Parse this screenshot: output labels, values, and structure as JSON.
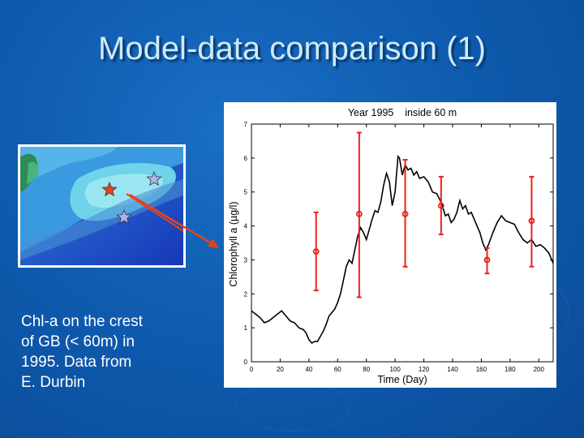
{
  "slide": {
    "title": "Model-data comparison (1)",
    "caption_lines": [
      "Chl-a on the crest",
      "of GB (< 60m)  in",
      "1995. Data from",
      "E. Durbin"
    ]
  },
  "colors": {
    "background": "#0f5cb0",
    "title_text": "#cfeaf7",
    "obs_series": "#e8221b",
    "model_series": "#000000",
    "arrow": "#e8421b"
  },
  "map": {
    "stars": [
      {
        "name": "station-1",
        "color": "#e8421b"
      },
      {
        "name": "station-2",
        "color": "#aab4f0"
      },
      {
        "name": "station-3",
        "color": "#aab4f0"
      }
    ]
  },
  "chart_data": {
    "type": "line",
    "title": "Year 1995    inside 60 m",
    "xlabel": "Time (Day)",
    "ylabel": "Chlorophyll a (µg/l)",
    "xlim": [
      0,
      210
    ],
    "ylim": [
      0,
      7
    ],
    "xticks": [
      0,
      20,
      40,
      60,
      80,
      100,
      120,
      140,
      160,
      180,
      200
    ],
    "yticks": [
      0,
      1,
      2,
      3,
      4,
      5,
      6,
      7
    ],
    "grid": false,
    "series": [
      {
        "style": "line",
        "x": [
          0,
          3,
          6,
          9,
          12,
          15,
          18,
          21,
          24,
          27,
          30,
          33,
          36,
          38,
          40,
          42,
          44,
          46,
          48,
          50,
          52,
          54,
          56,
          58,
          60,
          62,
          64,
          66,
          68,
          70,
          72,
          74,
          76,
          78,
          80,
          82,
          84,
          86,
          88,
          90,
          92,
          94,
          96,
          98,
          100,
          102,
          103,
          105,
          107,
          109,
          111,
          113,
          115,
          117,
          120,
          123,
          126,
          129,
          132,
          135,
          137,
          139,
          141,
          143,
          145,
          147,
          149,
          151,
          153,
          155,
          157,
          159,
          161,
          163,
          165,
          168,
          171,
          174,
          177,
          180,
          183,
          186,
          189,
          192,
          195,
          198,
          201,
          204,
          207,
          210
        ],
        "y": [
          1.5,
          1.4,
          1.3,
          1.15,
          1.2,
          1.3,
          1.4,
          1.5,
          1.35,
          1.2,
          1.15,
          1.0,
          0.95,
          0.85,
          0.65,
          0.55,
          0.6,
          0.6,
          0.75,
          0.9,
          1.1,
          1.35,
          1.45,
          1.55,
          1.75,
          2.0,
          2.4,
          2.8,
          3.0,
          2.9,
          3.3,
          3.7,
          3.95,
          3.8,
          3.6,
          3.9,
          4.2,
          4.45,
          4.4,
          4.7,
          5.2,
          5.55,
          5.3,
          4.6,
          5.0,
          6.05,
          6.0,
          5.5,
          5.8,
          5.65,
          5.7,
          5.5,
          5.6,
          5.4,
          5.45,
          5.3,
          5.0,
          4.95,
          4.7,
          4.3,
          4.35,
          4.1,
          4.2,
          4.4,
          4.75,
          4.5,
          4.6,
          4.35,
          4.4,
          4.2,
          4.0,
          3.8,
          3.5,
          3.3,
          3.45,
          3.8,
          4.1,
          4.3,
          4.15,
          4.1,
          4.05,
          3.8,
          3.6,
          3.5,
          3.6,
          3.4,
          3.45,
          3.35,
          3.2,
          2.9
        ]
      },
      {
        "style": "errorbar",
        "x": [
          45,
          75,
          107,
          132,
          164,
          195
        ],
        "y": [
          3.25,
          4.35,
          4.35,
          4.6,
          3.0,
          4.15
        ],
        "y_low": [
          2.1,
          1.9,
          2.8,
          3.75,
          2.6,
          2.8
        ],
        "y_high": [
          4.4,
          6.75,
          5.95,
          5.45,
          3.35,
          5.45
        ]
      }
    ]
  }
}
